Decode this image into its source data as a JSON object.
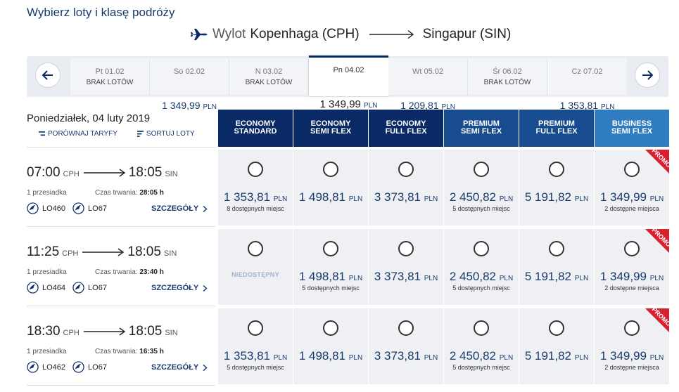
{
  "heading": "Wybierz loty i klasę podróży",
  "route": {
    "prefix": "Wylot",
    "from": "Kopenhaga (CPH)",
    "to": "Singapur (SIN)"
  },
  "date_bar": {
    "days": [
      {
        "label": "Pt 01.02",
        "value": "BRAK LOTÓW",
        "currency": ""
      },
      {
        "label": "So 02.02",
        "value": "1 349,99",
        "currency": "PLN"
      },
      {
        "label": "N 03.02",
        "value": "BRAK LOTÓW",
        "currency": ""
      },
      {
        "label": "Pn 04.02",
        "value": "1 349,99",
        "currency": "PLN"
      },
      {
        "label": "Wt 05.02",
        "value": "1 209,81",
        "currency": "PLN"
      },
      {
        "label": "Śr 06.02",
        "value": "BRAK LOTÓW",
        "currency": ""
      },
      {
        "label": "Cz 07.02",
        "value": "1 353,81",
        "currency": "PLN"
      }
    ]
  },
  "date_title": "Poniedziałek, 04 luty 2019",
  "tools": {
    "compare": "PORÓWNAJ TARYFY",
    "sort": "SORTUJ LOTY"
  },
  "columns": [
    {
      "line1": "ECONOMY",
      "line2": "STANDARD",
      "color": "#0a2a66"
    },
    {
      "line1": "ECONOMY",
      "line2": "SEMI FLEX",
      "color": "#0a2a66"
    },
    {
      "line1": "ECONOMY",
      "line2": "FULL FLEX",
      "color": "#0a2a66"
    },
    {
      "line1": "PREMIUM",
      "line2": "SEMI FLEX",
      "color": "#174c8f"
    },
    {
      "line1": "PREMIUM",
      "line2": "FULL FLEX",
      "color": "#174c8f"
    },
    {
      "line1": "BUSINESS",
      "line2": "SEMI FLEX",
      "color": "#2f7cc1"
    }
  ],
  "currency": "PLN",
  "unavailable_label": "NIEDOSTĘPNY",
  "promo_label": "PROMO",
  "flights": [
    {
      "dep_time": "07:00",
      "dep_code": "CPH",
      "arr_time": "18:05",
      "arr_code": "SIN",
      "stops": "1 przesiadka",
      "duration_label": "Czas trwania:",
      "duration": "28:05 h",
      "flight1": "LO460",
      "flight2": "LO67",
      "details": "SZCZEGÓŁY",
      "fares": [
        {
          "price": "1 353,81",
          "avail": "8 dostępnych miejsc"
        },
        {
          "price": "1 498,81",
          "avail": ""
        },
        {
          "price": "3 373,81",
          "avail": ""
        },
        {
          "price": "2 450,82",
          "avail": "5 dostępnych miejsc"
        },
        {
          "price": "5 191,82",
          "avail": ""
        },
        {
          "price": "1 349,99",
          "avail": "2 dostępne miejsca"
        }
      ]
    },
    {
      "dep_time": "11:25",
      "dep_code": "CPH",
      "arr_time": "18:05",
      "arr_code": "SIN",
      "stops": "1 przesiadka",
      "duration_label": "Czas trwania:",
      "duration": "23:40 h",
      "flight1": "LO464",
      "flight2": "LO67",
      "details": "SZCZEGÓŁY",
      "fares": [
        {
          "price": "",
          "avail": ""
        },
        {
          "price": "1 498,81",
          "avail": "5 dostępnych miejsc"
        },
        {
          "price": "3 373,81",
          "avail": ""
        },
        {
          "price": "2 450,82",
          "avail": "5 dostępnych miejsc"
        },
        {
          "price": "5 191,82",
          "avail": ""
        },
        {
          "price": "1 349,99",
          "avail": "2 dostępne miejsca"
        }
      ]
    },
    {
      "dep_time": "18:30",
      "dep_code": "CPH",
      "arr_time": "18:05",
      "arr_code": "SIN",
      "stops": "1 przesiadka",
      "duration_label": "Czas trwania:",
      "duration": "16:35 h",
      "flight1": "LO462",
      "flight2": "LO67",
      "details": "SZCZEGÓŁY",
      "fares": [
        {
          "price": "1 353,81",
          "avail": "5 dostępnych miejsc"
        },
        {
          "price": "1 498,81",
          "avail": ""
        },
        {
          "price": "3 373,81",
          "avail": ""
        },
        {
          "price": "2 450,82",
          "avail": "5 dostępnych miejsc"
        },
        {
          "price": "5 191,82",
          "avail": ""
        },
        {
          "price": "1 349,99",
          "avail": "2 dostępne miejsca"
        }
      ]
    }
  ]
}
